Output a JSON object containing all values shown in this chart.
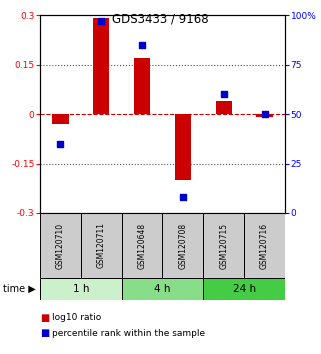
{
  "title": "GDS3433 / 9168",
  "samples": [
    "GSM120710",
    "GSM120711",
    "GSM120648",
    "GSM120708",
    "GSM120715",
    "GSM120716"
  ],
  "log10_ratio": [
    -0.03,
    0.29,
    0.17,
    -0.2,
    0.04,
    -0.01
  ],
  "percentile_rank": [
    35,
    97,
    85,
    8,
    60,
    50
  ],
  "time_groups": [
    {
      "label": "1 h",
      "start": 0,
      "end": 2,
      "color": "#ccf0cc"
    },
    {
      "label": "4 h",
      "start": 2,
      "end": 4,
      "color": "#88dd88"
    },
    {
      "label": "24 h",
      "start": 4,
      "end": 6,
      "color": "#44cc44"
    }
  ],
  "ylim": [
    -0.3,
    0.3
  ],
  "yticks_left": [
    -0.3,
    -0.15,
    0.0,
    0.15,
    0.3
  ],
  "ytick_labels_left": [
    "-0.3",
    "-0.15",
    "0",
    "0.15",
    "0.3"
  ],
  "yticks_right": [
    0,
    25,
    50,
    75,
    100
  ],
  "ytick_labels_right": [
    "0",
    "25",
    "50",
    "75",
    "100%"
  ],
  "bar_color": "#cc0000",
  "dot_color": "#0000cc",
  "sample_box_color": "#cccccc",
  "zero_line_color": "#cc0000",
  "dotted_line_color": "#555555",
  "legend_bar_label": "log10 ratio",
  "legend_dot_label": "percentile rank within the sample",
  "time_label": "time",
  "bar_width": 0.4,
  "dot_size": 20
}
